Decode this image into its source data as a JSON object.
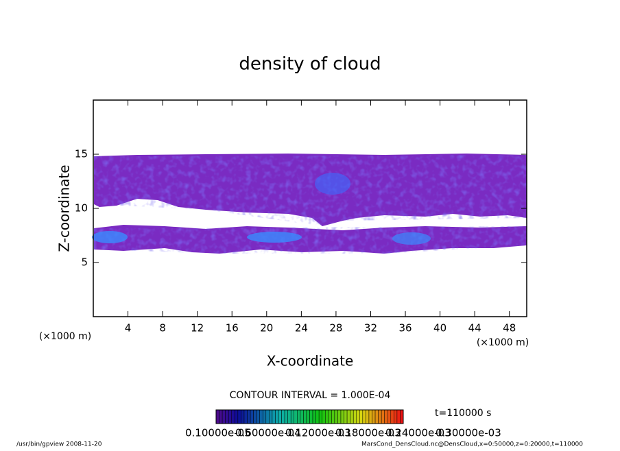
{
  "chart_data": {
    "type": "contour",
    "title": "density of cloud",
    "xlabel": "X-coordinate",
    "ylabel": "Z-coordinate",
    "x_unit_left": "(×1000 m)",
    "x_unit_right": "(×1000 m)",
    "xlim": [
      0,
      50
    ],
    "ylim": [
      0,
      20
    ],
    "xticks": [
      4,
      8,
      12,
      16,
      20,
      24,
      28,
      32,
      36,
      40,
      44,
      48
    ],
    "yticks": [
      5,
      10,
      15
    ],
    "contour_interval": "CONTOUR INTERVAL = 1.000E-04",
    "time": "t=110000 s",
    "colorbar": {
      "labels": [
        "0.10000e-05",
        "0.60000e-04",
        "0.12000e-03",
        "0.18000e-03",
        "0.24000e-03",
        "0.30000e-03"
      ]
    },
    "footer_left": "/usr/bin/gpview   2008-11-20",
    "footer_right": "MarsCond_DensCloud.nc@DensCloud,x=0:50000,z=0:20000,t=110000"
  }
}
